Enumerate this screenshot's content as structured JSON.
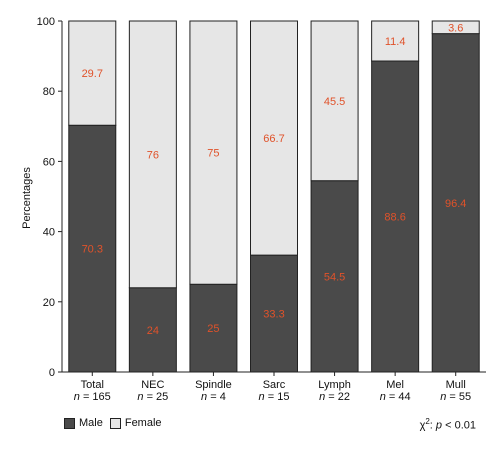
{
  "chart_data": {
    "type": "bar",
    "stacked": true,
    "ylabel": "Percentages",
    "ylim": [
      0,
      100
    ],
    "yticks": [
      0,
      20,
      40,
      60,
      80,
      100
    ],
    "categories": [
      "Total",
      "NEC",
      "Spindle",
      "Sarc",
      "Lymph",
      "Mel",
      "Mull"
    ],
    "category_n": [
      "n = 165",
      "n = 25",
      "n = 4",
      "n = 15",
      "n = 22",
      "n = 44",
      "n = 55"
    ],
    "series": [
      {
        "name": "Male",
        "color": "#4a4a4a",
        "values": [
          70.3,
          24,
          25,
          33.3,
          54.5,
          88.6,
          96.4
        ]
      },
      {
        "name": "Female",
        "color": "#e6e6e6",
        "values": [
          29.7,
          76,
          75,
          66.7,
          45.5,
          11.4,
          3.6
        ]
      }
    ],
    "data_label_color": "#e0522a",
    "annotation": {
      "symbol": "χ",
      "sup": "2",
      "sep": ": ",
      "p": "p",
      "rest": " < 0.01"
    },
    "legend_position": "bottom-left"
  }
}
